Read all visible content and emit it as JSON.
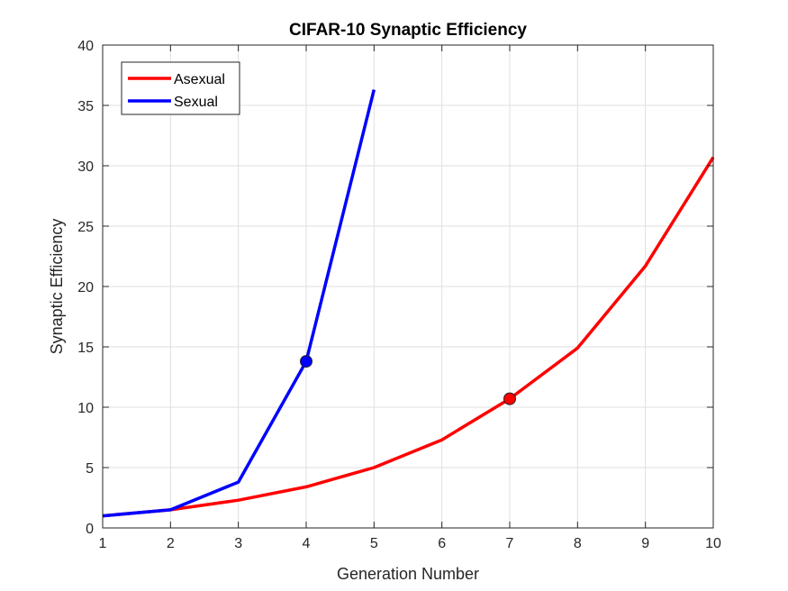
{
  "chart_data": {
    "type": "line",
    "title": "CIFAR-10 Synaptic Efficiency",
    "xlabel": "Generation Number",
    "ylabel": "Synaptic Efficiency",
    "xlim": [
      1,
      10
    ],
    "ylim": [
      0,
      40
    ],
    "xticks": [
      1,
      2,
      3,
      4,
      5,
      6,
      7,
      8,
      9,
      10
    ],
    "yticks": [
      0,
      5,
      10,
      15,
      20,
      25,
      30,
      35,
      40
    ],
    "grid": true,
    "legend_position": "top-left",
    "series": [
      {
        "name": "Asexual",
        "color": "#ff0000",
        "x": [
          1,
          2,
          3,
          4,
          5,
          6,
          7,
          8,
          9,
          10
        ],
        "y": [
          1.0,
          1.5,
          2.3,
          3.4,
          5.0,
          7.3,
          10.7,
          14.9,
          21.7,
          30.7
        ],
        "marker": {
          "x": 7,
          "y": 10.7
        }
      },
      {
        "name": "Sexual",
        "color": "#0000ff",
        "x": [
          1,
          2,
          3,
          4,
          5
        ],
        "y": [
          1.0,
          1.5,
          3.8,
          13.8,
          36.3
        ],
        "marker": {
          "x": 4,
          "y": 13.8
        }
      }
    ]
  }
}
